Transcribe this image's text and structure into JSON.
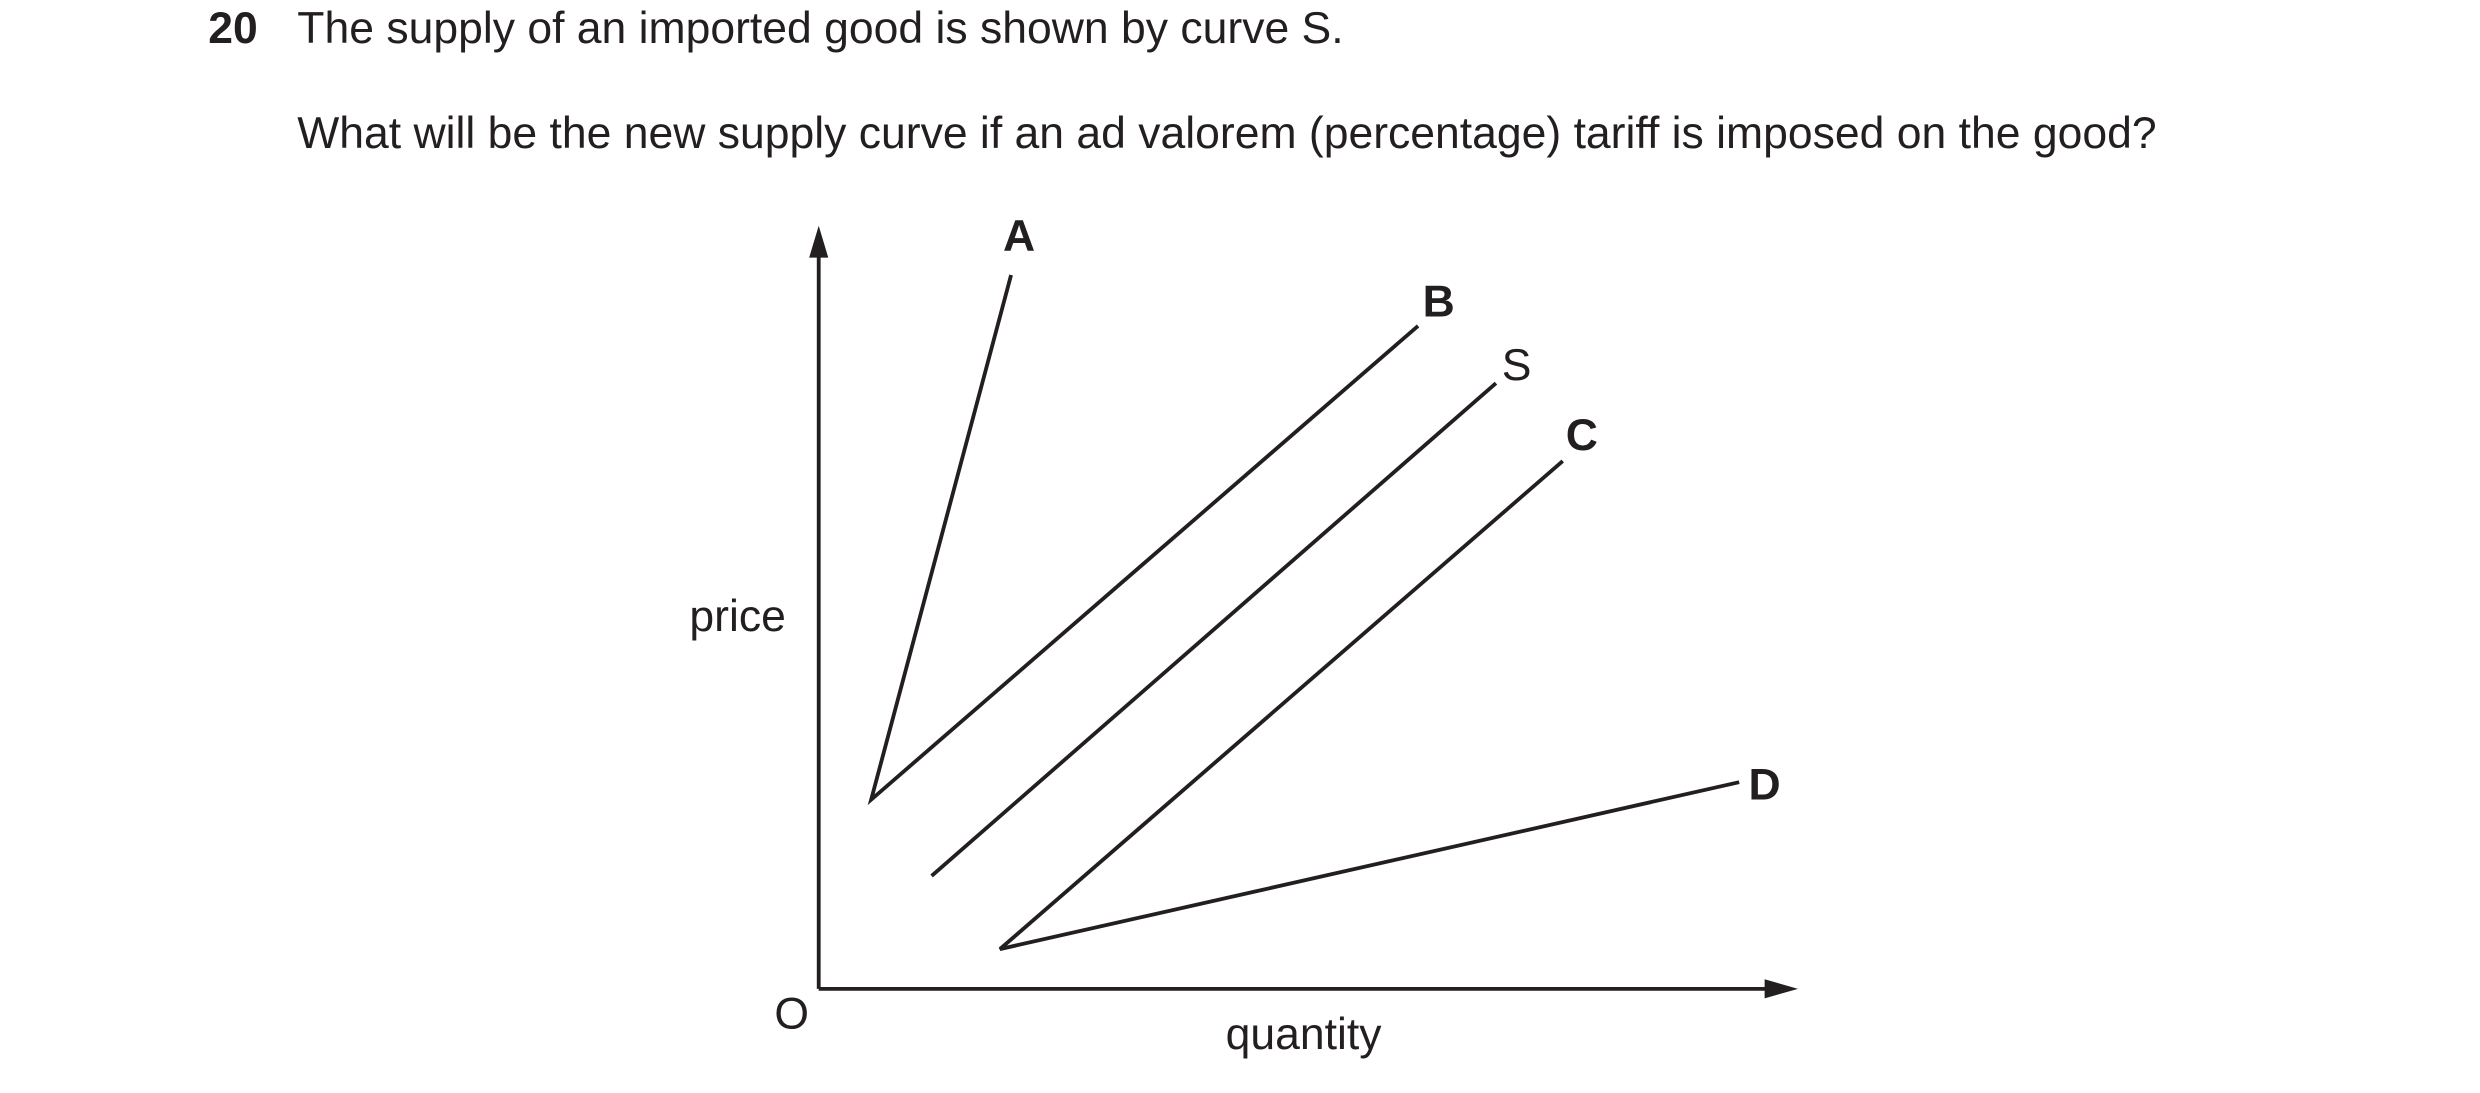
{
  "question": {
    "number": "20",
    "text": "The supply of an imported good is shown by curve S.",
    "prompt": "What will be the new supply curve if an ad valorem (percentage) tariff is imposed on the good?"
  },
  "diagram": {
    "y_axis_label": "price",
    "x_axis_label": "quantity",
    "origin_label": "O",
    "curves": [
      {
        "label": "A"
      },
      {
        "label": "B"
      },
      {
        "label": "S"
      },
      {
        "label": "C"
      },
      {
        "label": "D"
      }
    ]
  }
}
